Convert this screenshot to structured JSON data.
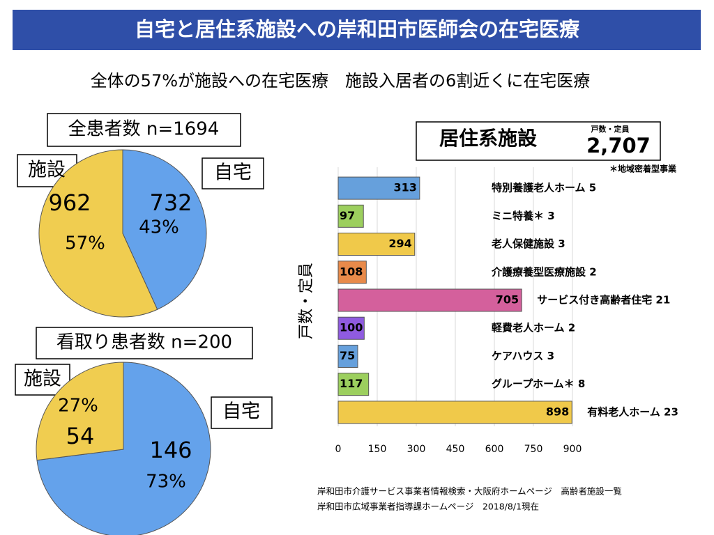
{
  "title": "自宅と居住系施設への岸和田市医師会の在宅医療",
  "subtitle": "全体の57%が施設への在宅医療　施設入居者の6割近くに在宅医療",
  "notes": [
    "岸和田市介護サービス事業者情報検索・大阪府ホームページ　高齢者施設一覧",
    "岸和田市広域事業者指導課ホームページ　2018/8/1現在"
  ],
  "chart_data": [
    {
      "type": "pie",
      "title": "全患者数 n=1694",
      "categories": [
        "自宅",
        "施設"
      ],
      "values": [
        732,
        962
      ],
      "percent_labels": [
        "43%",
        "57%"
      ],
      "colors": [
        "#64a2eb",
        "#f0cd50"
      ]
    },
    {
      "type": "pie",
      "title": "看取り患者数 n=200",
      "categories": [
        "自宅",
        "施設"
      ],
      "values": [
        146,
        54
      ],
      "percent_labels": [
        "73%",
        "27%"
      ],
      "colors": [
        "#64a2eb",
        "#f0cd50"
      ]
    },
    {
      "type": "hbar",
      "title": "居住系施設",
      "total_caption": "戸数・定員",
      "total_label": "2,707",
      "note": "＊地域密着型事業",
      "ylabel": "戸数・定員",
      "categories": [
        "特別養護老人ホーム 5",
        "ミニ特養＊ 3",
        "老人保健施設 3",
        "介護療養型医療施設 2",
        "サービス付き高齢者住宅 21",
        "軽費老人ホーム 2",
        "ケアハウス 3",
        "グループホーム＊ 8",
        "有料老人ホーム 23"
      ],
      "values": [
        313,
        97,
        294,
        108,
        705,
        100,
        75,
        117,
        898
      ],
      "colors": [
        "#66a0dc",
        "#9ccf5e",
        "#f0c94a",
        "#e88a4a",
        "#d4609c",
        "#8f5be0",
        "#66a0dc",
        "#9ccf5e",
        "#f0c94a"
      ],
      "xlim": [
        0,
        900
      ],
      "xticks": [
        0,
        150,
        300,
        450,
        600,
        750,
        900
      ],
      "grid": true
    }
  ]
}
